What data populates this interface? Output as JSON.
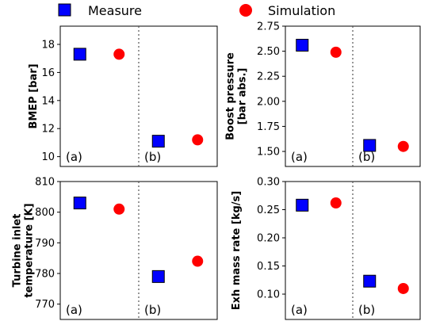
{
  "legend": {
    "measure": "Measure",
    "simulation": "Simulation"
  },
  "colors": {
    "measure": "#0000ff",
    "simulation": "#ff0000"
  },
  "chart_data": [
    {
      "type": "scatter",
      "ylabel_lines": [
        "BMEP [bar]"
      ],
      "ylim": [
        9.3,
        19.3
      ],
      "yticks": [
        10,
        12,
        14,
        16,
        18
      ],
      "ytick_labels": [
        "10",
        "12",
        "14",
        "16",
        "18"
      ],
      "xlim": [
        0,
        4
      ],
      "section_labels": [
        "(a)",
        "(b)"
      ],
      "series": [
        {
          "key": "measure",
          "x": [
            0.5,
            2.5
          ],
          "y": [
            17.3,
            11.1
          ]
        },
        {
          "key": "simulation",
          "x": [
            1.5,
            3.5
          ],
          "y": [
            17.3,
            11.2
          ]
        }
      ]
    },
    {
      "type": "scatter",
      "ylabel_lines": [
        "Boost pressure",
        "[bar abs.]"
      ],
      "ylim": [
        1.35,
        2.75
      ],
      "yticks": [
        1.5,
        1.75,
        2.0,
        2.25,
        2.5,
        2.75
      ],
      "ytick_labels": [
        "1.50",
        "1.75",
        "2.00",
        "2.25",
        "2.50",
        "2.75"
      ],
      "xlim": [
        0,
        4
      ],
      "section_labels": [
        "(a)",
        "(b)"
      ],
      "series": [
        {
          "key": "measure",
          "x": [
            0.5,
            2.5
          ],
          "y": [
            2.56,
            1.56
          ]
        },
        {
          "key": "simulation",
          "x": [
            1.5,
            3.5
          ],
          "y": [
            2.49,
            1.55
          ]
        }
      ]
    },
    {
      "type": "scatter",
      "ylabel_lines": [
        "Turbine inlet",
        "temperature [K]"
      ],
      "ylim": [
        765,
        810
      ],
      "yticks": [
        770,
        780,
        790,
        800,
        810
      ],
      "ytick_labels": [
        "770",
        "780",
        "790",
        "800",
        "810"
      ],
      "xlim": [
        0,
        4
      ],
      "section_labels": [
        "(a)",
        "(b)"
      ],
      "series": [
        {
          "key": "measure",
          "x": [
            0.5,
            2.5
          ],
          "y": [
            803,
            779
          ]
        },
        {
          "key": "simulation",
          "x": [
            1.5,
            3.5
          ],
          "y": [
            801,
            784
          ]
        }
      ]
    },
    {
      "type": "scatter",
      "ylabel_lines": [
        "Exh mass rate [kg/s]"
      ],
      "ylim": [
        0.055,
        0.3
      ],
      "yticks": [
        0.1,
        0.15,
        0.2,
        0.25,
        0.3
      ],
      "ytick_labels": [
        "0.10",
        "0.15",
        "0.20",
        "0.25",
        "0.30"
      ],
      "xlim": [
        0,
        4
      ],
      "section_labels": [
        "(a)",
        "(b)"
      ],
      "series": [
        {
          "key": "measure",
          "x": [
            0.5,
            2.5
          ],
          "y": [
            0.258,
            0.123
          ]
        },
        {
          "key": "simulation",
          "x": [
            1.5,
            3.5
          ],
          "y": [
            0.262,
            0.11
          ]
        }
      ]
    }
  ]
}
